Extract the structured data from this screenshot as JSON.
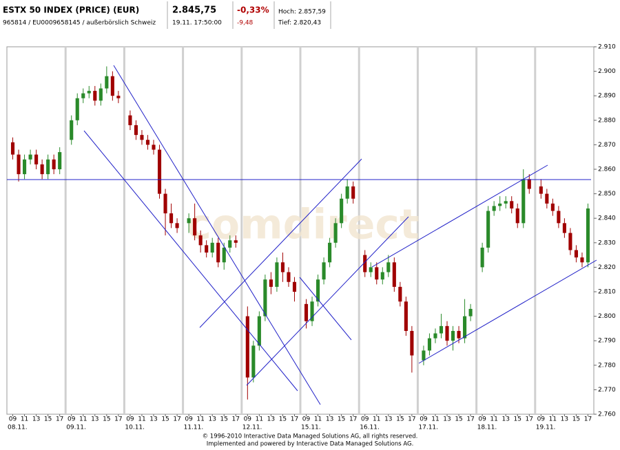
{
  "header": {
    "name": "ESTX 50 INDEX (PRICE) (EUR)",
    "id_line": "965814 / EU0009658145 / außerbörslich Schweiz",
    "price": "2.845,75",
    "time": "19.11. 17:50:00",
    "change_pct": "-0,33%",
    "change_abs": "-9,48",
    "high": "Hoch: 2.857,59",
    "low": "Tief: 2.820,43"
  },
  "chart_data": {
    "type": "candlestick",
    "watermark": "comdirect",
    "up_color": "#2a8a2a",
    "down_color": "#a00000",
    "xlim": [
      0,
      100
    ],
    "ylim": [
      2760,
      2910
    ],
    "x": [
      1,
      2,
      3,
      4,
      5,
      6,
      7,
      8,
      9,
      11,
      12,
      13,
      14,
      15,
      16,
      17,
      18,
      19,
      21,
      22,
      23,
      24,
      25,
      26,
      27,
      28,
      29,
      31,
      32,
      33,
      34,
      35,
      36,
      37,
      38,
      39,
      41,
      42,
      43,
      44,
      45,
      46,
      47,
      48,
      49,
      51,
      52,
      53,
      54,
      55,
      56,
      57,
      58,
      59,
      61,
      62,
      63,
      64,
      65,
      66,
      67,
      68,
      69,
      71,
      72,
      73,
      74,
      75,
      76,
      77,
      78,
      79,
      81,
      82,
      83,
      84,
      85,
      86,
      87,
      88,
      89,
      91,
      92,
      93,
      94,
      95,
      96,
      97,
      98,
      99
    ],
    "open": [
      2871,
      2866,
      2858,
      2864,
      2866,
      2862,
      2858,
      2864,
      2860,
      2872,
      2880,
      2889,
      2891,
      2892,
      2888,
      2893,
      2898,
      2890,
      2882,
      2878,
      2874,
      2872,
      2870,
      2868,
      2850,
      2842,
      2838,
      2838,
      2840,
      2833,
      2829,
      2826,
      2830,
      2822,
      2828,
      2831,
      2800,
      2775,
      2788,
      2800,
      2815,
      2812,
      2822,
      2818,
      2814,
      2805,
      2798,
      2806,
      2815,
      2822,
      2830,
      2838,
      2848,
      2853,
      2825,
      2818,
      2820,
      2815,
      2818,
      2822,
      2812,
      2806,
      2794,
      2782,
      2786,
      2791,
      2793,
      2796,
      2790,
      2794,
      2791,
      2800,
      2820,
      2828,
      2843,
      2845,
      2846,
      2847,
      2844,
      2838,
      2856,
      2853,
      2850,
      2846,
      2843,
      2838,
      2834,
      2827,
      2824,
      2822
    ],
    "high": [
      2873,
      2868,
      2866,
      2868,
      2868,
      2864,
      2866,
      2866,
      2869,
      2882,
      2891,
      2893,
      2894,
      2894,
      2895,
      2902,
      2900,
      2892,
      2884,
      2880,
      2876,
      2874,
      2872,
      2870,
      2852,
      2846,
      2840,
      2842,
      2846,
      2835,
      2831,
      2832,
      2832,
      2830,
      2833,
      2833,
      2804,
      2790,
      2802,
      2817,
      2818,
      2824,
      2826,
      2820,
      2816,
      2807,
      2808,
      2817,
      2824,
      2832,
      2840,
      2850,
      2856,
      2855,
      2827,
      2822,
      2822,
      2820,
      2825,
      2824,
      2814,
      2808,
      2796,
      2788,
      2793,
      2795,
      2801,
      2798,
      2796,
      2796,
      2807,
      2805,
      2830,
      2845,
      2847,
      2849,
      2849,
      2849,
      2846,
      2860,
      2858,
      2856,
      2852,
      2848,
      2845,
      2840,
      2836,
      2829,
      2826,
      2846
    ],
    "low": [
      2864,
      2855,
      2856,
      2862,
      2860,
      2856,
      2856,
      2858,
      2858,
      2870,
      2878,
      2887,
      2889,
      2886,
      2886,
      2891,
      2888,
      2887,
      2876,
      2872,
      2870,
      2868,
      2866,
      2848,
      2833,
      2836,
      2834,
      2834,
      2831,
      2826,
      2824,
      2824,
      2820,
      2819,
      2826,
      2828,
      2766,
      2773,
      2786,
      2798,
      2809,
      2810,
      2814,
      2812,
      2806,
      2795,
      2796,
      2804,
      2813,
      2820,
      2828,
      2836,
      2846,
      2846,
      2816,
      2816,
      2813,
      2813,
      2816,
      2810,
      2804,
      2792,
      2777,
      2780,
      2784,
      2789,
      2791,
      2788,
      2786,
      2789,
      2789,
      2798,
      2818,
      2826,
      2841,
      2843,
      2844,
      2842,
      2836,
      2836,
      2850,
      2848,
      2844,
      2841,
      2836,
      2832,
      2825,
      2822,
      2820,
      2820
    ],
    "close": [
      2866,
      2858,
      2864,
      2866,
      2862,
      2858,
      2864,
      2860,
      2867,
      2880,
      2889,
      2891,
      2892,
      2888,
      2893,
      2898,
      2890,
      2889,
      2878,
      2874,
      2872,
      2870,
      2868,
      2850,
      2842,
      2838,
      2836,
      2840,
      2833,
      2829,
      2826,
      2830,
      2822,
      2828,
      2831,
      2830,
      2775,
      2788,
      2800,
      2815,
      2812,
      2822,
      2818,
      2814,
      2810,
      2798,
      2806,
      2815,
      2822,
      2830,
      2838,
      2848,
      2853,
      2848,
      2818,
      2820,
      2815,
      2818,
      2822,
      2812,
      2806,
      2794,
      2784,
      2786,
      2791,
      2793,
      2796,
      2790,
      2794,
      2791,
      2800,
      2803,
      2828,
      2843,
      2845,
      2846,
      2847,
      2844,
      2838,
      2856,
      2852,
      2850,
      2846,
      2843,
      2838,
      2834,
      2827,
      2824,
      2822,
      2844
    ],
    "yticks": [
      {
        "value": 2760,
        "label": "2.760"
      },
      {
        "value": 2770,
        "label": "2.770"
      },
      {
        "value": 2780,
        "label": "2.780"
      },
      {
        "value": 2790,
        "label": "2.790"
      },
      {
        "value": 2800,
        "label": "2.800"
      },
      {
        "value": 2810,
        "label": "2.810"
      },
      {
        "value": 2820,
        "label": "2.820"
      },
      {
        "value": 2830,
        "label": "2.830"
      },
      {
        "value": 2840,
        "label": "2.840"
      },
      {
        "value": 2850,
        "label": "2.850"
      },
      {
        "value": 2860,
        "label": "2.860"
      },
      {
        "value": 2870,
        "label": "2.870"
      },
      {
        "value": 2880,
        "label": "2.880"
      },
      {
        "value": 2890,
        "label": "2.890"
      },
      {
        "value": 2900,
        "label": "2.900"
      },
      {
        "value": 2910,
        "label": "2.910"
      }
    ],
    "xticks": [
      {
        "value": 1,
        "label": "09"
      },
      {
        "value": 3,
        "label": "11"
      },
      {
        "value": 5,
        "label": "13"
      },
      {
        "value": 7,
        "label": "15"
      },
      {
        "value": 9,
        "label": "17"
      },
      {
        "value": 11,
        "label": "09"
      },
      {
        "value": 13,
        "label": "11"
      },
      {
        "value": 15,
        "label": "13"
      },
      {
        "value": 17,
        "label": "15"
      },
      {
        "value": 19,
        "label": "17"
      },
      {
        "value": 21,
        "label": "09"
      },
      {
        "value": 23,
        "label": "11"
      },
      {
        "value": 25,
        "label": "13"
      },
      {
        "value": 27,
        "label": "15"
      },
      {
        "value": 29,
        "label": "17"
      },
      {
        "value": 31,
        "label": "09"
      },
      {
        "value": 33,
        "label": "11"
      },
      {
        "value": 35,
        "label": "13"
      },
      {
        "value": 37,
        "label": "15"
      },
      {
        "value": 39,
        "label": "17"
      },
      {
        "value": 41,
        "label": "09"
      },
      {
        "value": 43,
        "label": "11"
      },
      {
        "value": 45,
        "label": "13"
      },
      {
        "value": 47,
        "label": "15"
      },
      {
        "value": 49,
        "label": "17"
      },
      {
        "value": 51,
        "label": "09"
      },
      {
        "value": 53,
        "label": "11"
      },
      {
        "value": 55,
        "label": "13"
      },
      {
        "value": 57,
        "label": "15"
      },
      {
        "value": 59,
        "label": "17"
      },
      {
        "value": 61,
        "label": "09"
      },
      {
        "value": 63,
        "label": "11"
      },
      {
        "value": 65,
        "label": "13"
      },
      {
        "value": 67,
        "label": "15"
      },
      {
        "value": 69,
        "label": "17"
      },
      {
        "value": 71,
        "label": "09"
      },
      {
        "value": 73,
        "label": "11"
      },
      {
        "value": 75,
        "label": "13"
      },
      {
        "value": 77,
        "label": "15"
      },
      {
        "value": 79,
        "label": "17"
      },
      {
        "value": 81,
        "label": "09"
      },
      {
        "value": 83,
        "label": "11"
      },
      {
        "value": 85,
        "label": "13"
      },
      {
        "value": 87,
        "label": "15"
      },
      {
        "value": 89,
        "label": "17"
      },
      {
        "value": 91,
        "label": "09"
      },
      {
        "value": 93,
        "label": "11"
      },
      {
        "value": 95,
        "label": "13"
      },
      {
        "value": 97,
        "label": "15"
      },
      {
        "value": 99,
        "label": "17"
      }
    ],
    "day_labels": [
      {
        "value": 0,
        "label": "08.11."
      },
      {
        "value": 10,
        "label": "09.11."
      },
      {
        "value": 20,
        "label": "10.11."
      },
      {
        "value": 30,
        "label": "11.11."
      },
      {
        "value": 40,
        "label": "12.11."
      },
      {
        "value": 50,
        "label": "15.11."
      },
      {
        "value": 60,
        "label": "16.11."
      },
      {
        "value": 70,
        "label": "17.11."
      },
      {
        "value": 80,
        "label": "18.11."
      },
      {
        "value": 90,
        "label": "19.11."
      }
    ]
  },
  "footer": {
    "line1": "© 1996-2010 Interactive Data Managed Solutions AG, all rights reserved.",
    "line2": "Implemented and powered by Interactive Data Managed Solutions AG."
  }
}
